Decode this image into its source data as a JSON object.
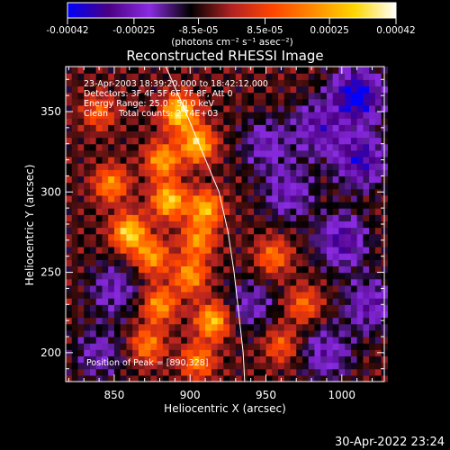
{
  "chart_data": {
    "type": "heatmap",
    "title": "Reconstructed RHESSI Image",
    "xlabel": "Heliocentric X (arcsec)",
    "ylabel": "Heliocentric Y (arcsec)",
    "xlim": [
      818,
      1028
    ],
    "ylim": [
      182,
      378
    ],
    "xticks": [
      850,
      900,
      950,
      1000
    ],
    "yticks": [
      200,
      250,
      300,
      350
    ],
    "xtick_labels": [
      "850",
      "900",
      "950",
      "1000"
    ],
    "ytick_labels": [
      "200",
      "250",
      "300",
      "350"
    ],
    "colorbar": {
      "min": -0.00042,
      "max": 0.00042,
      "ticks": [
        -0.00042,
        -0.00025,
        -8.5e-05,
        8.5e-05,
        0.00025,
        0.00042
      ],
      "tick_labels": [
        "-0.00042",
        "-0.00025",
        "-8.5e-05",
        "8.5e-05",
        "0.00025",
        "0.00042"
      ],
      "units": "(photons cm⁻² s⁻¹ asec⁻²)",
      "colors": [
        "#0000ff",
        "#4b0082",
        "#8a2be2",
        "#000000",
        "#b22222",
        "#ff4500",
        "#ff8c00",
        "#ffd700",
        "#ffffff"
      ]
    },
    "annotations": [
      "23-Apr-2003 18:39:20.000 to 18:42:12.000",
      "Detectors: 3F 4F 5F 6F 7F 8F, Att 0",
      "Energy Range: 25.0 - 50.0 keV",
      "Clean    Total counts: 2.74E+03"
    ],
    "peak_label": "Position of Peak = [890,328]",
    "peak": [
      890,
      328
    ],
    "limb_curve": [
      [
        884,
        378
      ],
      [
        897,
        350
      ],
      [
        908,
        325
      ],
      [
        919,
        300
      ],
      [
        925,
        275
      ],
      [
        929,
        250
      ],
      [
        932,
        225
      ],
      [
        935,
        200
      ],
      [
        936,
        182
      ]
    ],
    "hotspots": [
      {
        "x": 893,
        "y": 350,
        "v": 1.0
      },
      {
        "x": 905,
        "y": 330,
        "v": 0.9
      },
      {
        "x": 882,
        "y": 320,
        "v": 0.75
      },
      {
        "x": 848,
        "y": 305,
        "v": 0.65
      },
      {
        "x": 860,
        "y": 275,
        "v": 0.95
      },
      {
        "x": 886,
        "y": 295,
        "v": 0.9
      },
      {
        "x": 910,
        "y": 290,
        "v": 0.8
      },
      {
        "x": 905,
        "y": 270,
        "v": 0.65
      },
      {
        "x": 875,
        "y": 260,
        "v": 0.7
      },
      {
        "x": 900,
        "y": 248,
        "v": 0.7
      },
      {
        "x": 880,
        "y": 230,
        "v": 0.7
      },
      {
        "x": 915,
        "y": 220,
        "v": 0.85
      },
      {
        "x": 872,
        "y": 205,
        "v": 0.6
      },
      {
        "x": 905,
        "y": 195,
        "v": 0.6
      },
      {
        "x": 955,
        "y": 260,
        "v": 0.55
      },
      {
        "x": 975,
        "y": 230,
        "v": 0.5
      },
      {
        "x": 960,
        "y": 205,
        "v": 0.45
      },
      {
        "x": 840,
        "y": 350,
        "v": 0.45
      }
    ],
    "coldspots": [
      {
        "x": 1010,
        "y": 360,
        "v": -0.9
      },
      {
        "x": 1012,
        "y": 320,
        "v": -0.7
      },
      {
        "x": 985,
        "y": 340,
        "v": -0.55
      },
      {
        "x": 950,
        "y": 330,
        "v": -0.4
      },
      {
        "x": 965,
        "y": 300,
        "v": -0.45
      },
      {
        "x": 1000,
        "y": 270,
        "v": -0.6
      },
      {
        "x": 1018,
        "y": 230,
        "v": -0.5
      },
      {
        "x": 990,
        "y": 200,
        "v": -0.45
      },
      {
        "x": 940,
        "y": 230,
        "v": -0.35
      },
      {
        "x": 850,
        "y": 240,
        "v": -0.4
      },
      {
        "x": 840,
        "y": 200,
        "v": -0.35
      }
    ]
  },
  "footer": {
    "timestamp": "30-Apr-2022 23:24"
  }
}
